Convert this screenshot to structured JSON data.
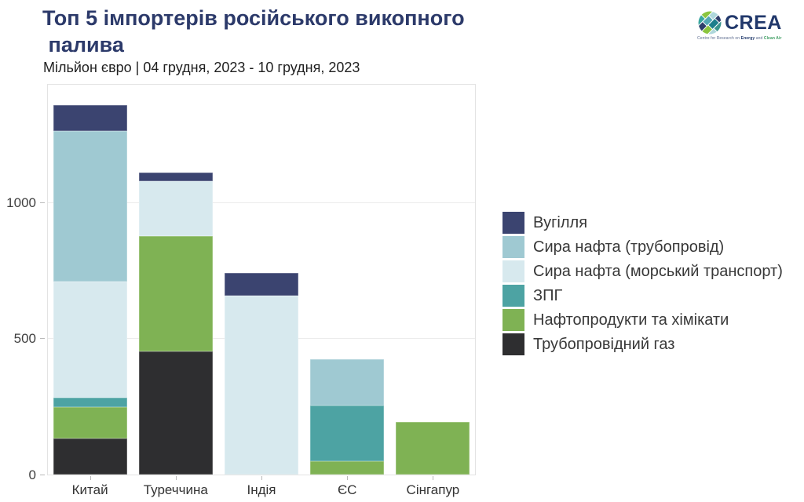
{
  "header": {
    "title": "Топ 5 імпортерів російського викопного\n палива",
    "subtitle": "Мільйон євро | 04 грудня, 2023 - 10 грудня, 2023"
  },
  "logo": {
    "brand": "CREA",
    "tagline": {
      "prefix": "Centre for Research on ",
      "energy": "Energy",
      "and": " and ",
      "clean_air": "Clean Air"
    }
  },
  "chart_data": {
    "type": "bar",
    "stacked": true,
    "title": "Топ 5 імпортерів російського викопного палива",
    "units_label": "Мільйон євро",
    "period_label": "04 грудня, 2023 - 10 грудня, 2023",
    "categories": [
      "Китай",
      "Туреччина",
      "Індія",
      "ЄС",
      "Сінгапур"
    ],
    "series": [
      {
        "name": "Вугілля",
        "color": "#3b4470",
        "values": [
          95,
          32,
          84,
          0,
          0
        ]
      },
      {
        "name": "Сира нафта (трубопровід)",
        "color": "#9fc9d2",
        "values": [
          558,
          0,
          0,
          170,
          0
        ]
      },
      {
        "name": "Сира нафта (морський транспорт)",
        "color": "#d7e9ee",
        "values": [
          427,
          202,
          660,
          0,
          0
        ]
      },
      {
        "name": "ЗПГ",
        "color": "#4da3a3",
        "values": [
          35,
          0,
          0,
          204,
          0
        ]
      },
      {
        "name": "Нафтопродукти та хімікати",
        "color": "#7fb254",
        "values": [
          115,
          425,
          0,
          50,
          195
        ]
      },
      {
        "name": "Трубопровідний газ",
        "color": "#2e2e30",
        "values": [
          133,
          455,
          0,
          0,
          0
        ]
      }
    ],
    "y_axis": {
      "ticks": [
        0,
        500,
        1000
      ],
      "max": 1437
    },
    "legend_position": "right",
    "grid": "horizontal",
    "stack_order_note": "legend top item renders at top of each stack"
  }
}
